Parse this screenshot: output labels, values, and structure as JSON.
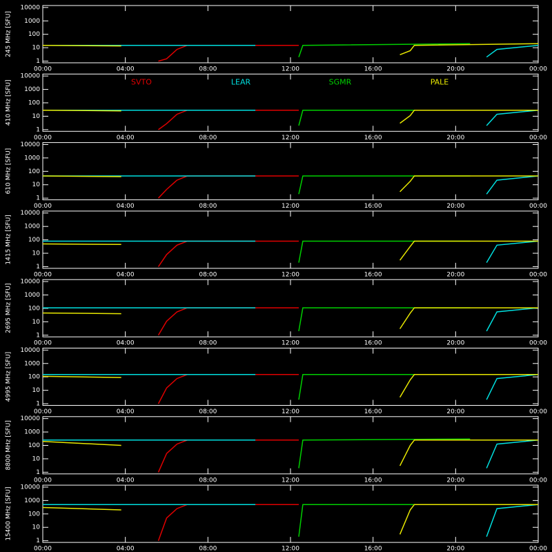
{
  "chart_data": [
    {
      "type": "line",
      "ylabel": "245 MHz [SFU]",
      "log_scale": true,
      "xlim": [
        0,
        24
      ],
      "ylim": [
        0.75,
        14000
      ],
      "xticks": [
        {
          "value": 0,
          "label": "00:00"
        },
        {
          "value": 4,
          "label": "04:00"
        },
        {
          "value": 8,
          "label": "08:00"
        },
        {
          "value": 12,
          "label": "12:00"
        },
        {
          "value": 16,
          "label": "16:00"
        },
        {
          "value": 20,
          "label": "20:00"
        },
        {
          "value": 24,
          "label": "00:00"
        }
      ],
      "yticks": [
        1,
        10,
        100,
        1000,
        10000
      ],
      "series": [
        {
          "color": "#e00000",
          "x": [
            5.6,
            6,
            6.5,
            7,
            12.4
          ],
          "values": [
            1,
            1.5,
            7.5,
            15,
            15
          ]
        },
        {
          "color": "#00e0e0",
          "x": [
            0,
            10.3,
            null,
            21.5,
            22,
            24
          ],
          "values": [
            15,
            15,
            null,
            2,
            7.5,
            15
          ]
        },
        {
          "color": "#00d000",
          "x": [
            12.4,
            12.6,
            20.7
          ],
          "values": [
            2,
            15,
            20
          ]
        },
        {
          "color": "#e8e800",
          "x": [
            0,
            3.8,
            null,
            17.3,
            17.8,
            18,
            24
          ],
          "values": [
            15,
            13.5,
            null,
            3,
            6,
            15,
            20
          ]
        }
      ]
    },
    {
      "type": "line",
      "ylabel": "410 MHz [SFU]",
      "log_scale": true,
      "xlim": [
        0,
        24
      ],
      "ylim": [
        0.75,
        14000
      ],
      "xticks": [
        {
          "value": 0,
          "label": "00:00"
        },
        {
          "value": 4,
          "label": "04:00"
        },
        {
          "value": 8,
          "label": "08:00"
        },
        {
          "value": 12,
          "label": "12:00"
        },
        {
          "value": 16,
          "label": "16:00"
        },
        {
          "value": 20,
          "label": "20:00"
        },
        {
          "value": 24,
          "label": "00:00"
        }
      ],
      "yticks": [
        1,
        10,
        100,
        1000,
        10000
      ],
      "legend": "top",
      "series": [
        {
          "name": "SVTO",
          "color": "#e00000",
          "x": [
            5.6,
            6,
            6.5,
            7,
            12.4
          ],
          "values": [
            1,
            2.8,
            14,
            28,
            28
          ]
        },
        {
          "name": "LEAR",
          "color": "#00e0e0",
          "x": [
            0,
            10.3,
            null,
            21.5,
            22,
            24
          ],
          "values": [
            28,
            28,
            null,
            2,
            14,
            28
          ]
        },
        {
          "name": "SGMR",
          "color": "#00d000",
          "x": [
            12.4,
            12.6,
            20.7
          ],
          "values": [
            2,
            28,
            28
          ]
        },
        {
          "name": "PALE",
          "color": "#e8e800",
          "x": [
            0,
            3.8,
            null,
            17.3,
            17.8,
            18,
            24
          ],
          "values": [
            28,
            25,
            null,
            3,
            11,
            28,
            28
          ]
        }
      ]
    },
    {
      "type": "line",
      "ylabel": "610 MHz [SFU]",
      "log_scale": true,
      "xlim": [
        0,
        24
      ],
      "ylim": [
        0.75,
        14000
      ],
      "xticks": [
        {
          "value": 0,
          "label": "00:00"
        },
        {
          "value": 4,
          "label": "04:00"
        },
        {
          "value": 8,
          "label": "08:00"
        },
        {
          "value": 12,
          "label": "12:00"
        },
        {
          "value": 16,
          "label": "16:00"
        },
        {
          "value": 20,
          "label": "20:00"
        },
        {
          "value": 24,
          "label": "00:00"
        }
      ],
      "yticks": [
        1,
        10,
        100,
        1000,
        10000
      ],
      "series": [
        {
          "color": "#e00000",
          "x": [
            5.6,
            6,
            6.5,
            7,
            12.4
          ],
          "values": [
            1,
            4.5,
            22,
            45,
            45
          ]
        },
        {
          "color": "#00e0e0",
          "x": [
            0,
            10.3,
            null,
            21.5,
            22,
            24
          ],
          "values": [
            45,
            45,
            null,
            2,
            22,
            45
          ]
        },
        {
          "color": "#00d000",
          "x": [
            12.4,
            12.6,
            20.7
          ],
          "values": [
            2,
            45,
            45
          ]
        },
        {
          "color": "#e8e800",
          "x": [
            0,
            3.8,
            null,
            17.3,
            17.8,
            18,
            24
          ],
          "values": [
            45,
            40,
            null,
            3,
            18,
            45,
            45
          ]
        }
      ]
    },
    {
      "type": "line",
      "ylabel": "1415 MHz [SFU]",
      "log_scale": true,
      "xlim": [
        0,
        24
      ],
      "ylim": [
        0.75,
        14000
      ],
      "xticks": [
        {
          "value": 0,
          "label": "00:00"
        },
        {
          "value": 4,
          "label": "04:00"
        },
        {
          "value": 8,
          "label": "08:00"
        },
        {
          "value": 12,
          "label": "12:00"
        },
        {
          "value": 16,
          "label": "16:00"
        },
        {
          "value": 20,
          "label": "20:00"
        },
        {
          "value": 24,
          "label": "00:00"
        }
      ],
      "yticks": [
        1,
        10,
        100,
        1000,
        10000
      ],
      "series": [
        {
          "color": "#e00000",
          "x": [
            5.6,
            6,
            6.5,
            7,
            12.4
          ],
          "values": [
            1,
            8,
            40,
            80,
            80
          ]
        },
        {
          "color": "#00e0e0",
          "x": [
            0,
            10.3,
            null,
            21.5,
            22,
            24
          ],
          "values": [
            80,
            80,
            null,
            2,
            40,
            80
          ]
        },
        {
          "color": "#00d000",
          "x": [
            12.4,
            12.6,
            20.7
          ],
          "values": [
            2,
            80,
            80
          ]
        },
        {
          "color": "#e8e800",
          "x": [
            0,
            3.8,
            null,
            17.3,
            17.8,
            18,
            24
          ],
          "values": [
            50,
            45,
            null,
            3,
            32,
            80,
            80
          ]
        }
      ]
    },
    {
      "type": "line",
      "ylabel": "2695 MHz [SFU]",
      "log_scale": true,
      "xlim": [
        0,
        24
      ],
      "ylim": [
        0.75,
        14000
      ],
      "xticks": [
        {
          "value": 0,
          "label": "00:00"
        },
        {
          "value": 4,
          "label": "04:00"
        },
        {
          "value": 8,
          "label": "08:00"
        },
        {
          "value": 12,
          "label": "12:00"
        },
        {
          "value": 16,
          "label": "16:00"
        },
        {
          "value": 20,
          "label": "20:00"
        },
        {
          "value": 24,
          "label": "00:00"
        }
      ],
      "yticks": [
        1,
        10,
        100,
        1000,
        10000
      ],
      "series": [
        {
          "color": "#e00000",
          "x": [
            5.6,
            6,
            6.5,
            7,
            12.4
          ],
          "values": [
            1,
            11,
            55,
            110,
            110
          ]
        },
        {
          "color": "#00e0e0",
          "x": [
            0,
            10.3,
            null,
            21.5,
            22,
            24
          ],
          "values": [
            110,
            110,
            null,
            2,
            55,
            110
          ]
        },
        {
          "color": "#00d000",
          "x": [
            12.4,
            12.6,
            20.7
          ],
          "values": [
            2,
            110,
            110
          ]
        },
        {
          "color": "#e8e800",
          "x": [
            0,
            3.8,
            null,
            17.3,
            17.8,
            18,
            24
          ],
          "values": [
            45,
            40,
            null,
            3,
            44,
            110,
            110
          ]
        }
      ]
    },
    {
      "type": "line",
      "ylabel": "4995 MHz [SFU]",
      "log_scale": true,
      "xlim": [
        0,
        24
      ],
      "ylim": [
        0.75,
        14000
      ],
      "xticks": [
        {
          "value": 0,
          "label": "00:00"
        },
        {
          "value": 4,
          "label": "04:00"
        },
        {
          "value": 8,
          "label": "08:00"
        },
        {
          "value": 12,
          "label": "12:00"
        },
        {
          "value": 16,
          "label": "16:00"
        },
        {
          "value": 20,
          "label": "20:00"
        },
        {
          "value": 24,
          "label": "00:00"
        }
      ],
      "yticks": [
        1,
        10,
        100,
        1000,
        10000
      ],
      "series": [
        {
          "color": "#e00000",
          "x": [
            5.6,
            6,
            6.5,
            7,
            12.4
          ],
          "values": [
            1,
            15,
            75,
            150,
            150
          ]
        },
        {
          "color": "#00e0e0",
          "x": [
            0,
            10.3,
            null,
            21.5,
            22,
            24
          ],
          "values": [
            150,
            150,
            null,
            2,
            75,
            150
          ]
        },
        {
          "color": "#00d000",
          "x": [
            12.4,
            12.6,
            20.7
          ],
          "values": [
            2,
            150,
            150
          ]
        },
        {
          "color": "#e8e800",
          "x": [
            0,
            3.8,
            null,
            17.3,
            17.8,
            18,
            24
          ],
          "values": [
            110,
            90,
            null,
            3,
            60,
            150,
            150
          ]
        }
      ]
    },
    {
      "type": "line",
      "ylabel": "8800 MHz [SFU]",
      "log_scale": true,
      "xlim": [
        0,
        24
      ],
      "ylim": [
        0.75,
        14000
      ],
      "xticks": [
        {
          "value": 0,
          "label": "00:00"
        },
        {
          "value": 4,
          "label": "04:00"
        },
        {
          "value": 8,
          "label": "08:00"
        },
        {
          "value": 12,
          "label": "12:00"
        },
        {
          "value": 16,
          "label": "16:00"
        },
        {
          "value": 20,
          "label": "20:00"
        },
        {
          "value": 24,
          "label": "00:00"
        }
      ],
      "yticks": [
        1,
        10,
        100,
        1000,
        10000
      ],
      "series": [
        {
          "color": "#e00000",
          "x": [
            5.6,
            6,
            6.5,
            7,
            12.4
          ],
          "values": [
            1,
            25,
            125,
            250,
            250
          ]
        },
        {
          "color": "#00e0e0",
          "x": [
            0,
            10.3,
            null,
            21.5,
            22,
            24
          ],
          "values": [
            250,
            250,
            null,
            2,
            125,
            250
          ]
        },
        {
          "color": "#00d000",
          "x": [
            12.4,
            12.6,
            20.7
          ],
          "values": [
            2,
            250,
            300
          ]
        },
        {
          "color": "#e8e800",
          "x": [
            0,
            3.8,
            null,
            17.3,
            17.8,
            18,
            24
          ],
          "values": [
            200,
            100,
            null,
            3,
            100,
            250,
            250
          ]
        }
      ]
    },
    {
      "type": "line",
      "ylabel": "15400 MHz [SFU]",
      "log_scale": true,
      "xlim": [
        0,
        24
      ],
      "ylim": [
        0.75,
        14000
      ],
      "xticks": [
        {
          "value": 0,
          "label": "00:00"
        },
        {
          "value": 4,
          "label": "04:00"
        },
        {
          "value": 8,
          "label": "08:00"
        },
        {
          "value": 12,
          "label": "12:00"
        },
        {
          "value": 16,
          "label": "16:00"
        },
        {
          "value": 20,
          "label": "20:00"
        },
        {
          "value": 24,
          "label": "00:00"
        }
      ],
      "yticks": [
        1,
        10,
        100,
        1000,
        10000
      ],
      "series": [
        {
          "color": "#e00000",
          "x": [
            5.6,
            6,
            6.5,
            7,
            12.4
          ],
          "values": [
            1,
            50,
            250,
            500,
            500
          ]
        },
        {
          "color": "#00e0e0",
          "x": [
            0,
            10.3,
            null,
            21.5,
            22,
            24
          ],
          "values": [
            500,
            500,
            null,
            2,
            250,
            500
          ]
        },
        {
          "color": "#00d000",
          "x": [
            12.4,
            12.6,
            20.7
          ],
          "values": [
            2,
            500,
            500
          ]
        },
        {
          "color": "#e8e800",
          "x": [
            0,
            3.8,
            null,
            17.3,
            17.8,
            18,
            24
          ],
          "values": [
            300,
            200,
            null,
            3,
            200,
            500,
            500
          ]
        }
      ]
    }
  ]
}
